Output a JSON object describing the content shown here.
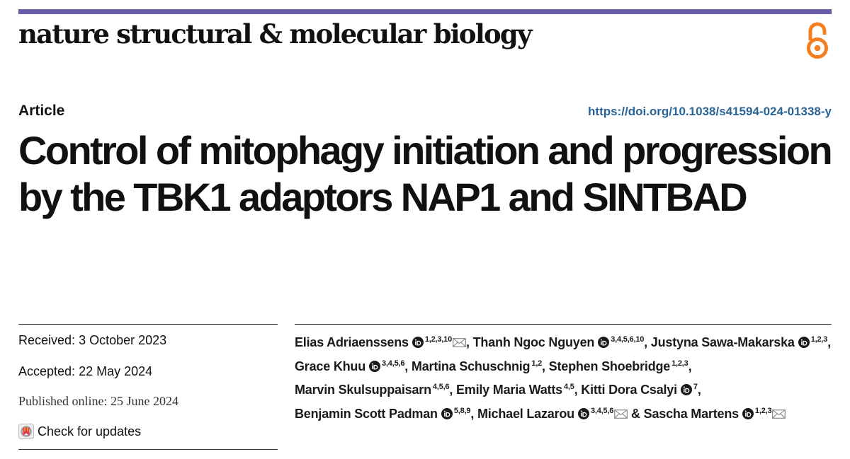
{
  "journal_name": "nature structural & molecular biology",
  "icons": {
    "open_access": "open-access-icon",
    "orcid": "orcid-icon",
    "mail": "mail-icon",
    "check_updates": "check-for-updates-icon"
  },
  "colors": {
    "top_bar": "#6b5aa6",
    "open_access": "#f47f20",
    "doi_link": "#2a6496"
  },
  "article_type": "Article",
  "doi": "https://doi.org/10.1038/s41594-024-01338-y",
  "title": "Control of mitophagy initiation and progression by the TBK1 adaptors NAP1 and SINTBAD",
  "dates": {
    "received_label": "Received:",
    "received_value": "3 October 2023",
    "accepted_label": "Accepted:",
    "accepted_value": "22 May 2024",
    "published_label": "Published online:",
    "published_value": "25 June 2024"
  },
  "check_updates_label": "Check for updates",
  "author_separator": ",",
  "author_final_separator": "&",
  "authors": [
    {
      "name": "Elias Adriaenssens",
      "orcid": true,
      "affiliations": "1,2,3,10",
      "corresponding": true
    },
    {
      "name": "Thanh Ngoc Nguyen",
      "orcid": true,
      "affiliations": "3,4,5,6,10",
      "corresponding": false
    },
    {
      "name": "Justyna Sawa-Makarska",
      "orcid": true,
      "affiliations": "1,2,3",
      "corresponding": false
    },
    {
      "name": "Grace Khuu",
      "orcid": true,
      "affiliations": "3,4,5,6",
      "corresponding": false
    },
    {
      "name": "Martina Schuschnig",
      "orcid": false,
      "affiliations": "1,2",
      "corresponding": false
    },
    {
      "name": "Stephen Shoebridge",
      "orcid": false,
      "affiliations": "1,2,3",
      "corresponding": false
    },
    {
      "name": "Marvin Skulsuppaisarn",
      "orcid": false,
      "affiliations": "4,5,6",
      "corresponding": false
    },
    {
      "name": "Emily Maria Watts",
      "orcid": false,
      "affiliations": "4,5",
      "corresponding": false
    },
    {
      "name": "Kitti Dora Csalyi",
      "orcid": true,
      "affiliations": "7",
      "corresponding": false
    },
    {
      "name": "Benjamin Scott Padman",
      "orcid": true,
      "affiliations": "5,8,9",
      "corresponding": false
    },
    {
      "name": "Michael Lazarou",
      "orcid": true,
      "affiliations": "3,4,5,6",
      "corresponding": true
    },
    {
      "name": "Sascha Martens",
      "orcid": true,
      "affiliations": "1,2,3",
      "corresponding": true
    }
  ]
}
